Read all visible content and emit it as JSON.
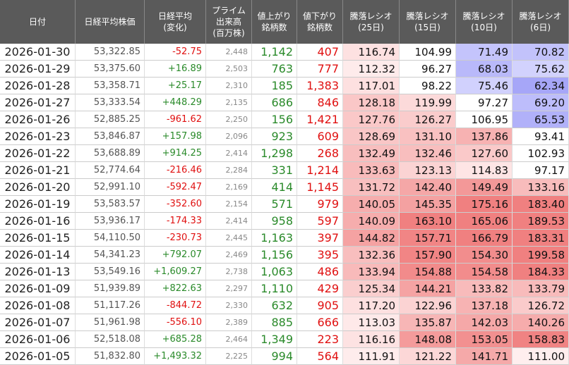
{
  "table": {
    "header": [
      [
        "日付"
      ],
      [
        "日経平均株価"
      ],
      [
        "日経平均",
        "(変化)"
      ],
      [
        "プライム",
        "出来高",
        "(百万株)"
      ],
      [
        "値上がり",
        "銘柄数"
      ],
      [
        "値下がり",
        "銘柄数"
      ],
      [
        "騰落レシオ",
        "(25日)"
      ],
      [
        "騰落レシオ",
        "(15日)"
      ],
      [
        "騰落レシオ",
        "(10日)"
      ],
      [
        "騰落レシオ",
        "(6日)"
      ]
    ],
    "rows": [
      [
        "2026-01-30",
        "53,322.85",
        "-52.75",
        "2,448",
        "1,142",
        "407",
        "116.74",
        "104.99",
        "71.49",
        "70.82"
      ],
      [
        "2026-01-29",
        "53,375.60",
        "+16.89",
        "2,503",
        "763",
        "777",
        "112.32",
        "96.27",
        "68.03",
        "75.62"
      ],
      [
        "2026-01-28",
        "53,358.71",
        "+25.17",
        "2,310",
        "185",
        "1,383",
        "117.01",
        "98.22",
        "75.46",
        "62.34"
      ],
      [
        "2026-01-27",
        "53,333.54",
        "+448.29",
        "2,135",
        "686",
        "846",
        "128.18",
        "119.99",
        "97.27",
        "69.20"
      ],
      [
        "2026-01-26",
        "52,885.25",
        "-961.62",
        "2,250",
        "156",
        "1,421",
        "127.76",
        "126.27",
        "106.95",
        "65.53"
      ],
      [
        "2026-01-23",
        "53,846.87",
        "+157.98",
        "2,096",
        "923",
        "609",
        "128.69",
        "131.10",
        "137.86",
        "93.41"
      ],
      [
        "2026-01-22",
        "53,688.89",
        "+914.25",
        "2,414",
        "1,298",
        "268",
        "132.49",
        "132.46",
        "127.60",
        "102.93"
      ],
      [
        "2026-01-21",
        "52,774.64",
        "-216.46",
        "2,284",
        "331",
        "1,214",
        "133.63",
        "123.13",
        "114.83",
        "97.17"
      ],
      [
        "2026-01-20",
        "52,991.10",
        "-592.47",
        "2,169",
        "414",
        "1,145",
        "131.72",
        "142.40",
        "149.49",
        "133.16"
      ],
      [
        "2026-01-19",
        "53,583.57",
        "-352.60",
        "2,154",
        "571",
        "979",
        "140.05",
        "145.35",
        "175.16",
        "183.40"
      ],
      [
        "2026-01-16",
        "53,936.17",
        "-174.33",
        "2,414",
        "958",
        "597",
        "140.09",
        "163.10",
        "165.06",
        "189.53"
      ],
      [
        "2026-01-15",
        "54,110.50",
        "-230.73",
        "2,445",
        "1,163",
        "397",
        "144.82",
        "157.71",
        "166.79",
        "183.31"
      ],
      [
        "2026-01-14",
        "54,341.23",
        "+792.07",
        "2,469",
        "1,156",
        "395",
        "132.36",
        "157.90",
        "154.30",
        "199.58"
      ],
      [
        "2026-01-13",
        "53,549.16",
        "+1,609.27",
        "2,738",
        "1,063",
        "486",
        "133.94",
        "154.88",
        "154.58",
        "184.33"
      ],
      [
        "2026-01-09",
        "51,939.89",
        "+822.63",
        "2,297",
        "1,110",
        "429",
        "125.34",
        "144.21",
        "133.82",
        "133.79"
      ],
      [
        "2026-01-08",
        "51,117.26",
        "-844.72",
        "2,330",
        "632",
        "905",
        "117.20",
        "122.96",
        "137.18",
        "126.72"
      ],
      [
        "2026-01-07",
        "51,961.98",
        "-556.10",
        "2,389",
        "885",
        "666",
        "113.03",
        "135.87",
        "142.03",
        "140.26"
      ],
      [
        "2026-01-06",
        "52,518.08",
        "+685.28",
        "2,464",
        "1,349",
        "223",
        "116.16",
        "148.08",
        "153.05",
        "158.83"
      ],
      [
        "2026-01-05",
        "51,832.80",
        "+1,493.32",
        "2,225",
        "994",
        "564",
        "111.91",
        "121.22",
        "141.71",
        "111.00"
      ]
    ]
  }
}
